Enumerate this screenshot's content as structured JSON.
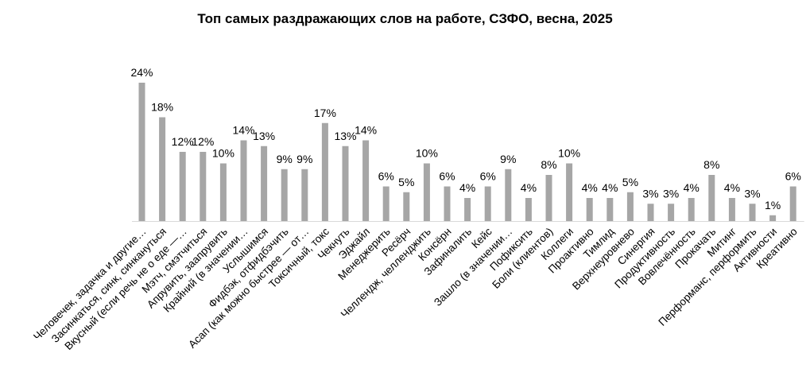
{
  "chart_data": {
    "type": "bar",
    "title": "Топ самых раздражающих слов на работе, СЗФО, весна, 2025",
    "categories": [
      "Человечек, задачка и другие…",
      "Засинкаться, синк, синкануться",
      "Вкусный (если речь не о еде —…",
      "Мэтч, смэтчиться",
      "Апрувить, заапрувить",
      "Крайний (в значении…",
      "Услышимся",
      "Фидбэк, отфидбэчить",
      "Асап (как можно быстрее — от…",
      "Токсичный, токс",
      "Чекнуть",
      "Эджайл",
      "Менеджерить",
      "Ресёрч",
      "Челлендж, челленджить",
      "Консёрн",
      "Зафиналить",
      "Кейс",
      "Зашло (в значении…",
      "Пофиксить",
      "Боли (клиентов)",
      "Коллеги",
      "Проактивно",
      "Тимлид",
      "Верхнеуровнево",
      "Синергия",
      "Продуктивность",
      "Вовлечённость",
      "Прокачать",
      "Митинг",
      "Перформанс, перформить",
      "Активности",
      "Креативно"
    ],
    "values": [
      24,
      18,
      12,
      12,
      10,
      14,
      13,
      9,
      9,
      17,
      13,
      14,
      6,
      5,
      10,
      6,
      4,
      6,
      9,
      4,
      8,
      10,
      4,
      4,
      5,
      3,
      3,
      4,
      8,
      4,
      3,
      1,
      6
    ],
    "value_labels": [
      "24%",
      "18%",
      "12%",
      "12%",
      "10%",
      "14%",
      "13%",
      "9%",
      "9%",
      "17%",
      "13%",
      "14%",
      "6%",
      "5%",
      "10%",
      "6%",
      "4%",
      "6%",
      "9%",
      "4%",
      "8%",
      "10%",
      "4%",
      "4%",
      "5%",
      "3%",
      "3%",
      "4%",
      "8%",
      "4%",
      "3%",
      "1%",
      "6%"
    ],
    "unit": "%",
    "ylim": [
      0,
      24
    ],
    "grid": false,
    "legend": "none",
    "bar_color": "#a6a6a6",
    "axis_color": "#d9d9d9"
  }
}
